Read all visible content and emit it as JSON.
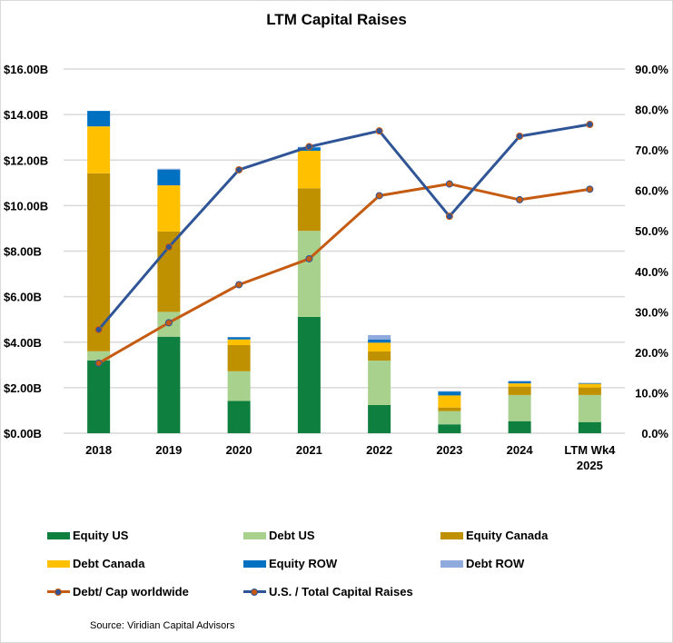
{
  "chart_data": {
    "type": "bar",
    "stacked": true,
    "title": "LTM Capital Raises",
    "xlabel": "",
    "ylabel": "",
    "y2label": "",
    "categories": [
      "2018",
      "2019",
      "2020",
      "2021",
      "2022",
      "2023",
      "2024",
      "LTM Wk4 2025"
    ],
    "ylim": [
      0,
      16
    ],
    "yticks": [
      "$0.00B",
      "$2.00B",
      "$4.00B",
      "$6.00B",
      "$8.00B",
      "$10.00B",
      "$12.00B",
      "$14.00B",
      "$16.00B"
    ],
    "y2lim": [
      0,
      90
    ],
    "y2ticks": [
      "0.0%",
      "10.0%",
      "20.0%",
      "30.0%",
      "40.0%",
      "50.0%",
      "60.0%",
      "70.0%",
      "80.0%",
      "90.0%"
    ],
    "grid": true,
    "legend_position": "bottom",
    "series": [
      {
        "name": "Equity US",
        "kind": "bar",
        "color": "#0e7f3e",
        "values": [
          3.2,
          4.24,
          1.42,
          5.11,
          1.24,
          0.39,
          0.53,
          0.49
        ]
      },
      {
        "name": "Debt US",
        "kind": "bar",
        "color": "#a9d18e",
        "values": [
          0.4,
          1.09,
          1.3,
          3.78,
          1.95,
          0.58,
          1.15,
          1.19
        ]
      },
      {
        "name": "Equity Canada",
        "kind": "bar",
        "color": "#bf9000",
        "values": [
          7.82,
          3.53,
          1.15,
          1.87,
          0.4,
          0.16,
          0.37,
          0.33
        ]
      },
      {
        "name": "Debt Canada",
        "kind": "bar",
        "color": "#ffc000",
        "values": [
          2.06,
          2.03,
          0.25,
          1.65,
          0.39,
          0.53,
          0.14,
          0.16
        ]
      },
      {
        "name": "Equity ROW",
        "kind": "bar",
        "color": "#0070c0",
        "values": [
          0.68,
          0.68,
          0.09,
          0.15,
          0.13,
          0.17,
          0.09,
          0.03
        ]
      },
      {
        "name": "Debt ROW",
        "kind": "bar",
        "color": "#8faadc",
        "values": [
          0.0,
          0.05,
          0.02,
          0.02,
          0.2,
          0.02,
          0.02,
          0.01
        ]
      },
      {
        "name": "Debt/ Cap worldwide",
        "kind": "line",
        "axis": "right",
        "color": "#c55a11",
        "marker_color": "#c55a11",
        "marker_edge": "#2f5597",
        "values": [
          17.3,
          27.3,
          36.7,
          43.1,
          58.7,
          61.6,
          57.7,
          60.3
        ]
      },
      {
        "name": "U.S. / Total Capital Raises",
        "kind": "line",
        "axis": "right",
        "color": "#2f5597",
        "marker_color": "#2f5597",
        "marker_edge": "#c55a11",
        "values": [
          25.6,
          46.0,
          65.1,
          70.8,
          74.7,
          53.6,
          73.4,
          76.3
        ]
      }
    ]
  },
  "source": "Source: Viridian Capital Advisors"
}
